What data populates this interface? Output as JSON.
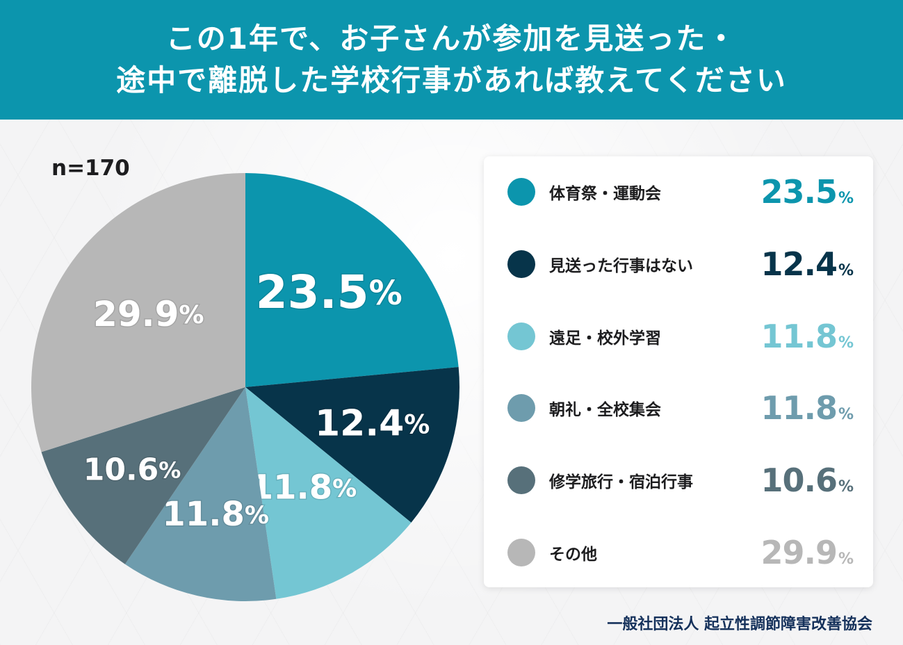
{
  "title": {
    "line1": "この1年で、お子さんが参加を見送った・",
    "line2": "途中で離脱した学校行事があれば教えてください"
  },
  "sample_size": "n=170",
  "legend": [
    {
      "label": "体育祭・運動会",
      "value": "23.5",
      "unit": "%",
      "color": "#0c95ad"
    },
    {
      "label": "見送った行事はない",
      "value": "12.4",
      "unit": "%",
      "color": "#07344a"
    },
    {
      "label": "遠足・校外学習",
      "value": "11.8",
      "unit": "%",
      "color": "#74c6d3"
    },
    {
      "label": "朝礼・全校集会",
      "value": "11.8",
      "unit": "%",
      "color": "#6e9cad"
    },
    {
      "label": "修学旅行・宿泊行事",
      "value": "10.6",
      "unit": "%",
      "color": "#57707a"
    },
    {
      "label": "その他",
      "value": "29.9",
      "unit": "%",
      "color": "#b7b7b7"
    }
  ],
  "footer": "一般社団法人 起立性調節障害改善協会",
  "chart_data": {
    "type": "pie",
    "categories": [
      "体育祭・運動会",
      "見送った行事はない",
      "遠足・校外学習",
      "朝礼・全校集会",
      "修学旅行・宿泊行事",
      "その他"
    ],
    "values": [
      23.5,
      12.4,
      11.8,
      11.8,
      10.6,
      29.9
    ],
    "data_labels": [
      "23.5%",
      "12.4%",
      "11.8%",
      "11.8%",
      "10.6%",
      "29.9%"
    ],
    "colors": [
      "#0c95ad",
      "#07344a",
      "#74c6d3",
      "#6e9cad",
      "#57707a",
      "#b7b7b7"
    ],
    "title": "この1年で、お子さんが参加を見送った・途中で離脱した学校行事があれば教えてください",
    "legend_position": "right"
  }
}
